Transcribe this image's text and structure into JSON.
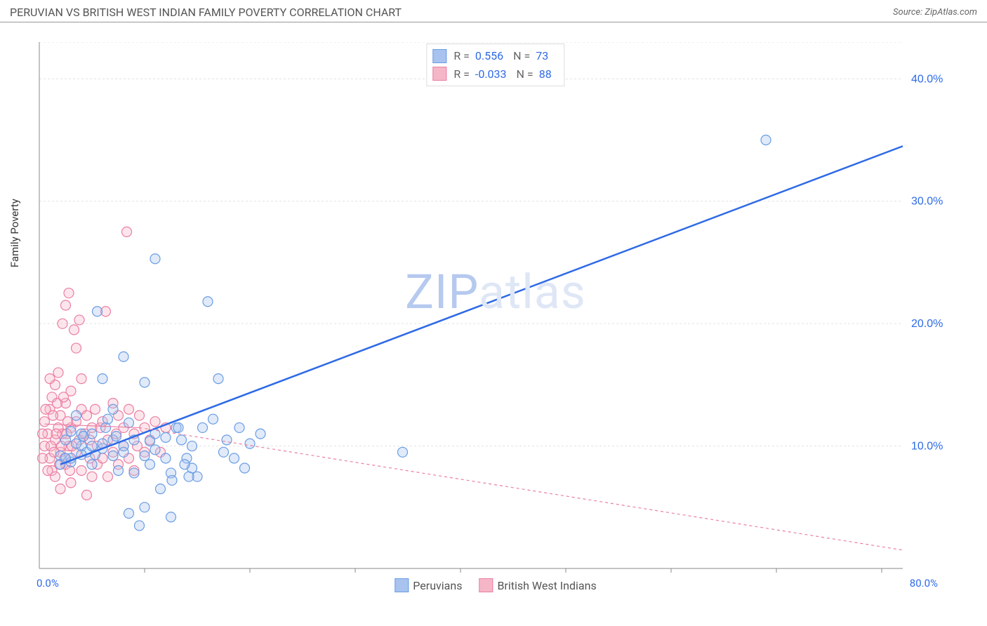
{
  "header": {
    "title": "PERUVIAN VS BRITISH WEST INDIAN FAMILY POVERTY CORRELATION CHART",
    "source_label": "Source: ZipAtlas.com"
  },
  "ylabel": "Family Poverty",
  "watermark": {
    "bold": "ZIP",
    "light": "atlas"
  },
  "chart": {
    "type": "scatter",
    "xlim": [
      0,
      82
    ],
    "ylim": [
      0,
      43
    ],
    "grid_color": "#e3e3e3",
    "grid_dash": "3,3",
    "axis_color": "#888",
    "background_color": "#ffffff",
    "x_axis_label_left": "0.0%",
    "x_axis_label_right": "80.0%",
    "x_axis_label_color": "#2e6ae6",
    "x_axis_label_fontsize": 15,
    "y_ticks": [
      10.0,
      20.0,
      30.0,
      40.0
    ],
    "y_tick_labels": [
      "10.0%",
      "20.0%",
      "30.0%",
      "40.0%"
    ],
    "y_tick_color": "#2e6ae6",
    "y_tick_fontsize": 16,
    "x_minor_ticks": [
      10,
      20,
      30,
      40,
      50,
      60,
      70,
      80
    ],
    "marker_radius": 7,
    "marker_fill_opacity": 0.35,
    "marker_stroke_width": 1.2,
    "series": [
      {
        "name": "Peruvians",
        "color_fill": "#a8c3ef",
        "color_stroke": "#6a9de4",
        "trend_color": "#2e6ae6",
        "trend_width": 2.5,
        "trend_dash": "none",
        "trend_dash_ext": "none",
        "R": "0.556",
        "N": "73",
        "trend_x1": 2,
        "trend_y1": 8.5,
        "trend_x2": 82,
        "trend_y2": 34.5,
        "points": [
          [
            2,
            9.2
          ],
          [
            2.5,
            10.5
          ],
          [
            3,
            11.2
          ],
          [
            3,
            8.7
          ],
          [
            3.5,
            12.5
          ],
          [
            4,
            10.0
          ],
          [
            4,
            11.0
          ],
          [
            4.5,
            9.5
          ],
          [
            5,
            8.5
          ],
          [
            5,
            11.0
          ],
          [
            5.5,
            21.0
          ],
          [
            6,
            15.5
          ],
          [
            6,
            9.8
          ],
          [
            6.5,
            12.2
          ],
          [
            7,
            10.5
          ],
          [
            7,
            13.0
          ],
          [
            7.5,
            8.0
          ],
          [
            8,
            17.3
          ],
          [
            8,
            10.0
          ],
          [
            8.5,
            4.5
          ],
          [
            8.5,
            11.9
          ],
          [
            9,
            7.8
          ],
          [
            9.5,
            3.5
          ],
          [
            10,
            15.2
          ],
          [
            10,
            5.0
          ],
          [
            10.5,
            10.4
          ],
          [
            10.5,
            8.5
          ],
          [
            11,
            25.3
          ],
          [
            11,
            11.0
          ],
          [
            11.5,
            6.5
          ],
          [
            12,
            9.0
          ],
          [
            12.5,
            7.8
          ],
          [
            12.5,
            4.2
          ],
          [
            13,
            11.5
          ],
          [
            13.5,
            10.5
          ],
          [
            14,
            9.0
          ],
          [
            14.5,
            8.2
          ],
          [
            15,
            7.5
          ],
          [
            15.5,
            11.5
          ],
          [
            16,
            21.8
          ],
          [
            17,
            15.5
          ],
          [
            17.5,
            9.5
          ],
          [
            19,
            11.5
          ],
          [
            19.5,
            8.2
          ],
          [
            21,
            11.0
          ],
          [
            34.5,
            9.5
          ],
          [
            69,
            35.0
          ],
          [
            2,
            8.5
          ],
          [
            3,
            9.0
          ],
          [
            4,
            9.3
          ],
          [
            5,
            10.0
          ],
          [
            6,
            10.2
          ],
          [
            7,
            9.2
          ],
          [
            8,
            9.5
          ],
          [
            9,
            10.5
          ],
          [
            10,
            9.2
          ],
          [
            11,
            9.7
          ],
          [
            12,
            10.7
          ],
          [
            12.6,
            7.2
          ],
          [
            13.2,
            11.5
          ],
          [
            13.8,
            8.5
          ],
          [
            14.2,
            7.5
          ],
          [
            14.5,
            10.0
          ],
          [
            16.5,
            12.2
          ],
          [
            17.8,
            10.5
          ],
          [
            18.5,
            9.0
          ],
          [
            20,
            10.2
          ],
          [
            2.5,
            9.0
          ],
          [
            3.5,
            10.2
          ],
          [
            4.2,
            10.8
          ],
          [
            5.3,
            9.3
          ],
          [
            6.3,
            11.5
          ],
          [
            7.3,
            10.8
          ]
        ]
      },
      {
        "name": "British West Indians",
        "color_fill": "#f5b7c8",
        "color_stroke": "#eb7ea3",
        "trend_color": "#eb7ea3",
        "trend_width": 1.2,
        "trend_dash": "none",
        "trend_dash_ext": "4,4",
        "R": "-0.033",
        "N": "88",
        "trend_x1": 0.5,
        "trend_y1": 11.8,
        "trend_x2": 9.5,
        "trend_y2": 11.5,
        "trend_ext_x2": 82,
        "trend_ext_y2": 1.5,
        "points": [
          [
            0.5,
            10.0
          ],
          [
            0.5,
            12.0
          ],
          [
            0.8,
            11.0
          ],
          [
            1,
            9.0
          ],
          [
            1,
            13.0
          ],
          [
            1.2,
            8.0
          ],
          [
            1.2,
            14.0
          ],
          [
            1.5,
            10.5
          ],
          [
            1.5,
            7.5
          ],
          [
            1.5,
            15.0
          ],
          [
            1.8,
            11.5
          ],
          [
            1.8,
            16.0
          ],
          [
            2,
            9.5
          ],
          [
            2,
            12.5
          ],
          [
            2,
            6.5
          ],
          [
            2.2,
            20.0
          ],
          [
            2.2,
            11.0
          ],
          [
            2.5,
            8.5
          ],
          [
            2.5,
            13.5
          ],
          [
            2.5,
            21.5
          ],
          [
            2.8,
            10.0
          ],
          [
            2.8,
            22.5
          ],
          [
            3,
            7.0
          ],
          [
            3,
            11.5
          ],
          [
            3,
            14.5
          ],
          [
            3.3,
            19.5
          ],
          [
            3.5,
            9.5
          ],
          [
            3.5,
            12.0
          ],
          [
            3.5,
            18.0
          ],
          [
            3.8,
            10.5
          ],
          [
            3.8,
            20.3
          ],
          [
            4,
            8.0
          ],
          [
            4,
            13.0
          ],
          [
            4,
            15.5
          ],
          [
            4.3,
            11.0
          ],
          [
            4.5,
            6.0
          ],
          [
            4.5,
            12.5
          ],
          [
            4.8,
            9.0
          ],
          [
            4.8,
            10.5
          ],
          [
            5,
            11.5
          ],
          [
            5,
            7.5
          ],
          [
            5.3,
            13.0
          ],
          [
            5.5,
            10.0
          ],
          [
            5.5,
            8.5
          ],
          [
            5.8,
            11.5
          ],
          [
            6,
            9.0
          ],
          [
            6,
            12.0
          ],
          [
            6.3,
            21.0
          ],
          [
            6.5,
            10.5
          ],
          [
            6.5,
            7.5
          ],
          [
            7,
            13.5
          ],
          [
            7,
            9.5
          ],
          [
            7.3,
            11.0
          ],
          [
            7.5,
            8.5
          ],
          [
            7.5,
            12.5
          ],
          [
            8,
            10.0
          ],
          [
            8,
            11.5
          ],
          [
            8.3,
            27.5
          ],
          [
            8.5,
            9.0
          ],
          [
            8.5,
            13.0
          ],
          [
            9,
            11.0
          ],
          [
            9,
            8.0
          ],
          [
            9.3,
            10.0
          ],
          [
            9.5,
            12.5
          ],
          [
            10,
            9.5
          ],
          [
            10,
            11.5
          ],
          [
            10.5,
            10.5
          ],
          [
            11,
            12.0
          ],
          [
            11.5,
            9.5
          ],
          [
            12,
            11.5
          ],
          [
            0.3,
            11.0
          ],
          [
            0.3,
            9.0
          ],
          [
            0.6,
            13.0
          ],
          [
            0.8,
            8.0
          ],
          [
            1.0,
            15.5
          ],
          [
            1.1,
            10.0
          ],
          [
            1.3,
            12.5
          ],
          [
            1.4,
            9.5
          ],
          [
            1.6,
            11.0
          ],
          [
            1.7,
            13.5
          ],
          [
            1.9,
            8.5
          ],
          [
            2.1,
            10.0
          ],
          [
            2.3,
            14.0
          ],
          [
            2.4,
            9.0
          ],
          [
            2.6,
            11.0
          ],
          [
            2.7,
            12.0
          ],
          [
            2.9,
            8.0
          ],
          [
            3.1,
            10.0
          ]
        ]
      }
    ]
  },
  "stats_box": {
    "rows": [
      {
        "swatch_fill": "#a8c3ef",
        "swatch_stroke": "#6a9de4",
        "R_label": "R =",
        "R": "0.556",
        "N_label": "N =",
        "N": "73"
      },
      {
        "swatch_fill": "#f5b7c8",
        "swatch_stroke": "#eb7ea3",
        "R_label": "R =",
        "R": "-0.033",
        "N_label": "N =",
        "N": "88"
      }
    ]
  },
  "bottom_legend": [
    {
      "swatch_fill": "#a8c3ef",
      "swatch_stroke": "#6a9de4",
      "label": "Peruvians"
    },
    {
      "swatch_fill": "#f5b7c8",
      "swatch_stroke": "#eb7ea3",
      "label": "British West Indians"
    }
  ]
}
